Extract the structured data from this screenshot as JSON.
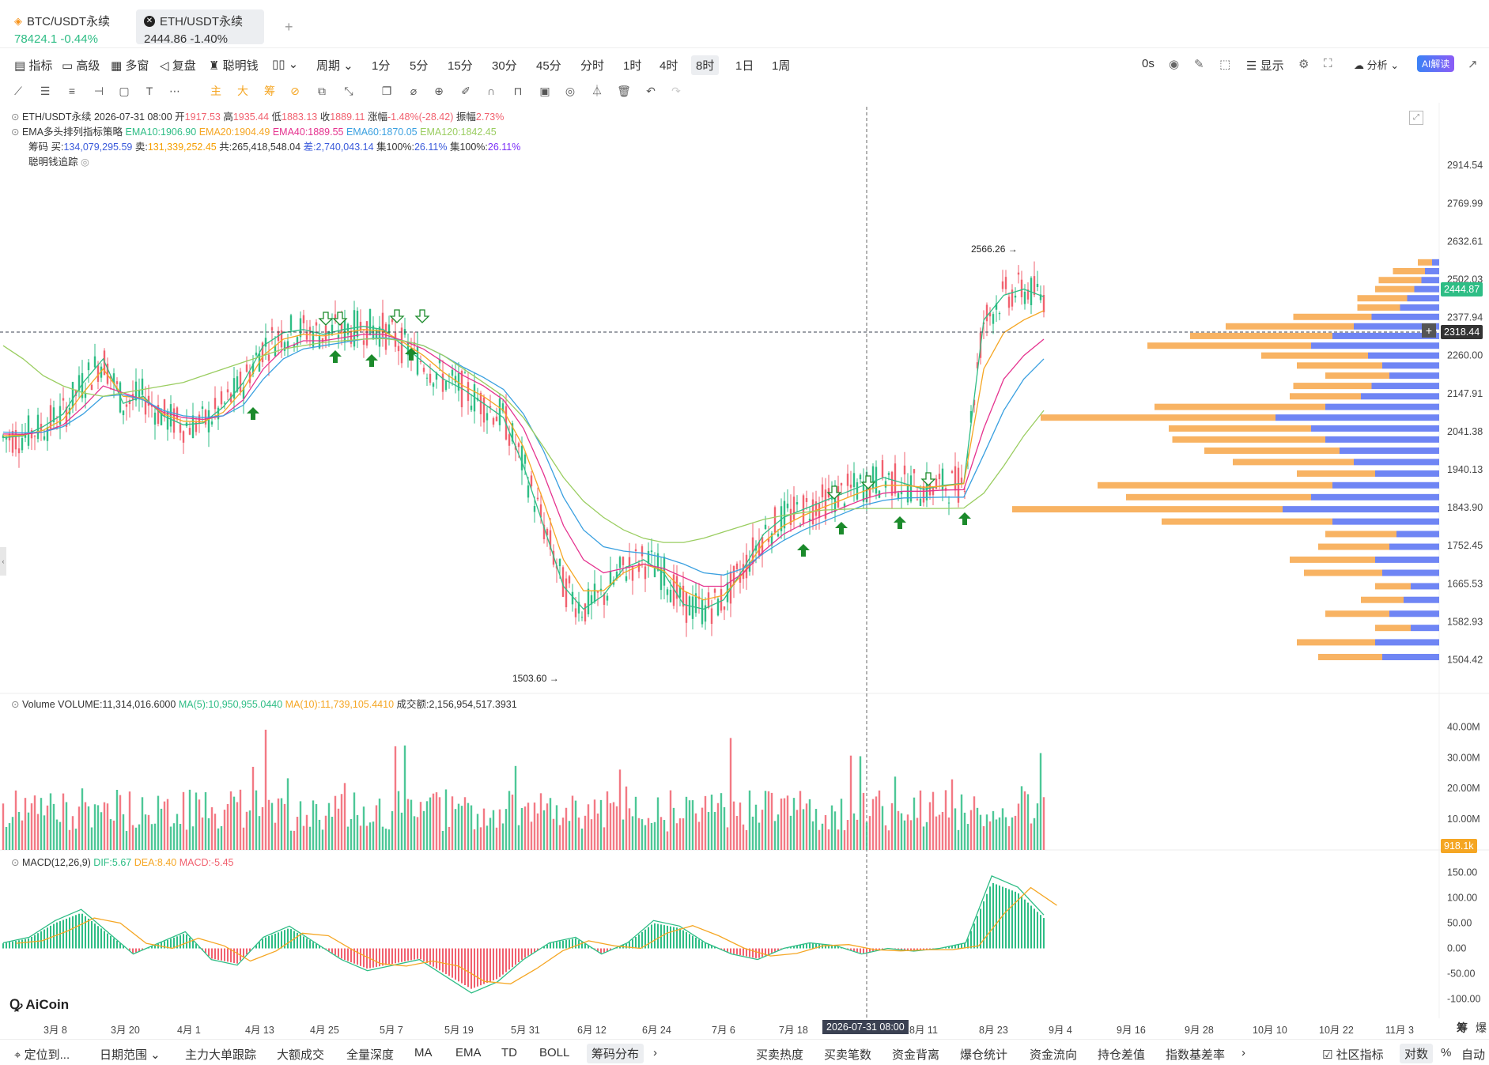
{
  "tabs": [
    {
      "name": "BTC/USDT永续",
      "price": "78424.1",
      "change": "-0.44%"
    },
    {
      "name": "ETH/USDT永续",
      "price": "2444.86",
      "change": "-1.40%"
    }
  ],
  "add_tab": "+",
  "toolbar": {
    "left": [
      "指标",
      "高级",
      "多窗",
      "复盘",
      "聪明钱"
    ],
    "period_label": "周期",
    "periods": [
      "1分",
      "5分",
      "15分",
      "30分",
      "45分",
      "分时",
      "1时",
      "4时",
      "8时",
      "1日",
      "1周"
    ],
    "selected_period": "8时",
    "right": {
      "timer": "0s",
      "display": "显示",
      "analysis": "分析",
      "ai": "AI解读"
    }
  },
  "drawbar": {
    "labels": [
      "主",
      "大",
      "筹"
    ]
  },
  "legend": {
    "line1": {
      "symbol": "ETH/USDT永续",
      "date": "2026-07-31 08:00",
      "open_label": "开",
      "open": "1917.53",
      "high_label": "高",
      "high": "1935.44",
      "low_label": "低",
      "low": "1883.13",
      "close_label": "收",
      "close": "1889.11",
      "chg_label": "涨幅",
      "chg": "-1.48%(-28.42)",
      "amp_label": "振幅",
      "amp": "2.73%"
    },
    "line2": {
      "name": "EMA多头排列指标策略",
      "ema10": "EMA10:1906.90",
      "ema20": "EMA20:1904.49",
      "ema40": "EMA40:1889.55",
      "ema60": "EMA60:1870.05",
      "ema120": "EMA120:1842.45"
    },
    "line3": {
      "label": "筹码",
      "buy_label": "买:",
      "buy": "134,079,295.59",
      "sell_label": "卖:",
      "sell": "131,339,252.45",
      "total": "共:265,418,548.04",
      "diff": "差:2,740,043.14",
      "c1": "集100%:",
      "c1v": "26.11%",
      "c2": "集100%:",
      "c2v": "26.11%"
    },
    "line4": {
      "name": "聪明钱追踪"
    }
  },
  "volume_legend": {
    "name": "Volume",
    "vol": "VOLUME:11,314,016.6000",
    "ma5": "MA(5):10,950,955.0440",
    "ma10": "MA(10):11,739,105.4410",
    "amount": "成交额:2,156,954,517.3931"
  },
  "macd_legend": {
    "name": "MACD(12,26,9)",
    "dif": "DIF:5.67",
    "dea": "DEA:8.40",
    "macd": "MACD:-5.45"
  },
  "logo": "AiCoin",
  "price_tags": {
    "current": "2444.87",
    "crosshair": "2318.44",
    "volume": "918.1k"
  },
  "high_annot": "2566.26 →",
  "low_annot": "1503.60 →",
  "crosshair_date": "2026-07-31 08:00",
  "bottom": {
    "locate": "定位到...",
    "range": "日期范围",
    "items": [
      "主力大单跟踪",
      "大额成交",
      "全量深度",
      "MA",
      "EMA",
      "TD",
      "BOLL",
      "筹码分布"
    ],
    "selected": "筹码分布",
    "right_items": [
      "买卖热度",
      "买卖笔数",
      "资金背离",
      "爆仓统计",
      "资金流向",
      "持仓差值",
      "指数基差率"
    ],
    "community": "社区指标",
    "log": "对数",
    "pct": "%",
    "auto": "自动",
    "chips": "筹",
    "liq": "爆"
  },
  "colors": {
    "up": "#2ebd85",
    "down": "#f1616f",
    "ema10": "#2ebd85",
    "ema20": "#f5a623",
    "ema40": "#e5338f",
    "ema60": "#3aa0e0",
    "ema120": "#9acd60",
    "chip_buy": "#f8b363",
    "chip_sell": "#6f85f4"
  },
  "chart_data": [
    {
      "type": "line",
      "title": "ETH/USDT永续 8时",
      "x_ticks": [
        "3月 8",
        "3月 20",
        "4月 1",
        "4月 13",
        "4月 25",
        "5月 7",
        "5月 19",
        "5月 31",
        "6月 12",
        "6月 24",
        "7月 6",
        "7月 18",
        "8月 11",
        "8月 23",
        "9月 4",
        "9月 16",
        "9月 28",
        "10月 10",
        "10月 22",
        "11月 3"
      ],
      "y_ticks": [
        "2914.54",
        "2769.99",
        "2632.61",
        "2502.03",
        "2377.94",
        "2260.00",
        "2147.91",
        "2041.38",
        "1940.13",
        "1843.90",
        "1752.45",
        "1665.53",
        "1582.93",
        "1504.42"
      ],
      "ylim": [
        1480,
        2990
      ],
      "scale": "log",
      "series": [
        {
          "name": "EMA10",
          "values": [
            2025,
            2030,
            2055,
            2090,
            2180,
            2250,
            2120,
            2140,
            2085,
            2060,
            2065,
            2110,
            2180,
            2290,
            2330,
            2340,
            2325,
            2340,
            2350,
            2340,
            2290,
            2240,
            2190,
            2160,
            2120,
            2080,
            1950,
            1800,
            1660,
            1610,
            1640,
            1700,
            1720,
            1690,
            1620,
            1610,
            1630,
            1700,
            1780,
            1820,
            1840,
            1860,
            1880,
            1900,
            1920,
            1905,
            1890,
            1900,
            1905,
            2370,
            2450,
            2470,
            2445
          ]
        },
        {
          "name": "EMA20",
          "values": [
            2030,
            2032,
            2045,
            2075,
            2150,
            2220,
            2140,
            2135,
            2090,
            2070,
            2068,
            2095,
            2160,
            2260,
            2310,
            2325,
            2320,
            2330,
            2340,
            2335,
            2300,
            2260,
            2210,
            2170,
            2140,
            2100,
            2000,
            1860,
            1720,
            1650,
            1650,
            1690,
            1710,
            1695,
            1650,
            1630,
            1640,
            1690,
            1760,
            1800,
            1825,
            1845,
            1865,
            1885,
            1900,
            1900,
            1895,
            1898,
            1904,
            2220,
            2330,
            2370,
            2400
          ]
        },
        {
          "name": "EMA40",
          "values": [
            2035,
            2034,
            2040,
            2060,
            2110,
            2170,
            2150,
            2130,
            2095,
            2080,
            2075,
            2085,
            2130,
            2220,
            2280,
            2305,
            2305,
            2315,
            2325,
            2325,
            2305,
            2280,
            2240,
            2200,
            2170,
            2130,
            2050,
            1930,
            1800,
            1720,
            1690,
            1700,
            1710,
            1700,
            1680,
            1660,
            1660,
            1690,
            1740,
            1780,
            1805,
            1825,
            1845,
            1865,
            1880,
            1885,
            1885,
            1888,
            1889,
            2050,
            2190,
            2260,
            2310
          ]
        },
        {
          "name": "EMA60",
          "values": [
            2040,
            2038,
            2040,
            2055,
            2090,
            2140,
            2145,
            2130,
            2100,
            2085,
            2080,
            2085,
            2115,
            2190,
            2250,
            2280,
            2290,
            2300,
            2310,
            2315,
            2305,
            2290,
            2260,
            2225,
            2195,
            2160,
            2090,
            1990,
            1870,
            1790,
            1750,
            1740,
            1735,
            1725,
            1710,
            1690,
            1685,
            1700,
            1735,
            1765,
            1790,
            1810,
            1830,
            1850,
            1862,
            1868,
            1869,
            1870,
            1870,
            1980,
            2100,
            2190,
            2250
          ]
        },
        {
          "name": "EMA120",
          "values": [
            2290,
            2250,
            2200,
            2170,
            2150,
            2140,
            2150,
            2160,
            2170,
            2180,
            2200,
            2220,
            2240,
            2260,
            2280,
            2290,
            2300,
            2305,
            2310,
            2312,
            2305,
            2290,
            2260,
            2220,
            2180,
            2140,
            2080,
            2000,
            1920,
            1860,
            1820,
            1790,
            1770,
            1760,
            1760,
            1770,
            1785,
            1800,
            1815,
            1825,
            1832,
            1838,
            1840,
            1842,
            1842,
            1842,
            1842,
            1842,
            1843,
            1880,
            1950,
            2030,
            2100
          ]
        }
      ]
    },
    {
      "type": "bar",
      "title": "Volume",
      "y_ticks": [
        "40.00M",
        "30.00M",
        "20.00M",
        "10.00M"
      ],
      "ylim": [
        0,
        45
      ]
    },
    {
      "type": "bar",
      "title": "MACD(12,26,9)",
      "y_ticks": [
        "150.00",
        "100.00",
        "50.00",
        "0.00",
        "-50.00",
        "-100.00"
      ],
      "ylim": [
        -110,
        160
      ]
    },
    {
      "type": "bar",
      "title": "筹码分布",
      "y": [
        2560,
        2530,
        2500,
        2470,
        2440,
        2410,
        2380,
        2350,
        2320,
        2290,
        2260,
        2230,
        2200,
        2170,
        2140,
        2110,
        2080,
        2050,
        2020,
        1990,
        1960,
        1930,
        1900,
        1870,
        1840,
        1810,
        1780,
        1750,
        1720,
        1690,
        1660,
        1630,
        1600,
        1570,
        1540,
        1510
      ],
      "buy": [
        20,
        45,
        60,
        55,
        70,
        60,
        110,
        180,
        200,
        230,
        150,
        120,
        90,
        110,
        100,
        240,
        330,
        200,
        215,
        190,
        170,
        110,
        330,
        260,
        380,
        240,
        100,
        100,
        120,
        110,
        50,
        60,
        90,
        50,
        110,
        90
      ],
      "sell": [
        10,
        20,
        25,
        35,
        45,
        55,
        95,
        120,
        150,
        180,
        100,
        80,
        70,
        95,
        110,
        160,
        230,
        180,
        160,
        140,
        120,
        90,
        150,
        180,
        220,
        150,
        60,
        70,
        90,
        80,
        40,
        50,
        70,
        40,
        90,
        80
      ]
    }
  ]
}
